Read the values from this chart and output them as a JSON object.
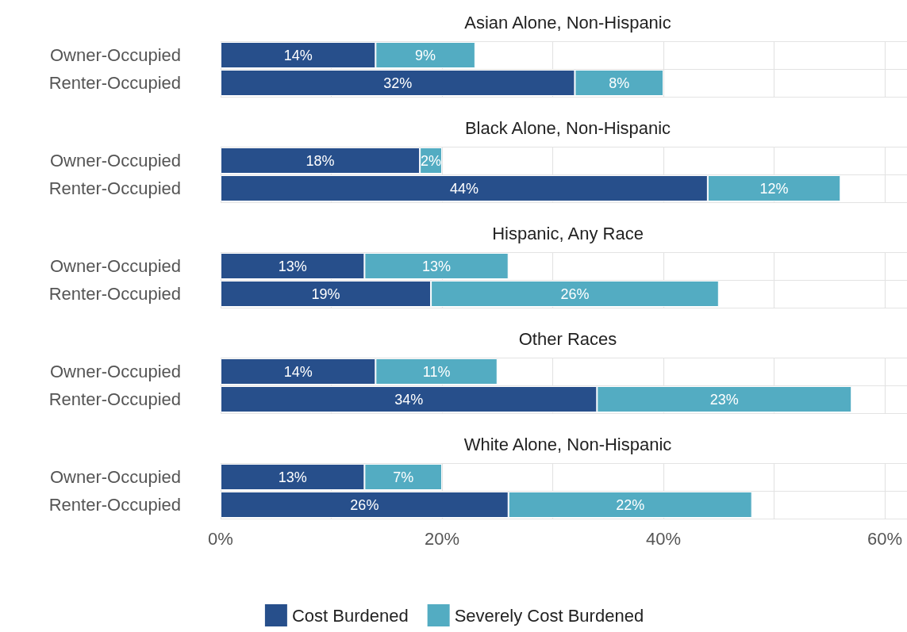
{
  "chart_data": [
    {
      "type": "bar",
      "orientation": "horizontal",
      "stacked": true,
      "title": "Asian Alone, Non-Hispanic",
      "categories": [
        "Owner-Occupied",
        "Renter-Occupied"
      ],
      "series": [
        {
          "color": "#274f8b",
          "values": [
            14,
            32
          ],
          "value_labels": [
            "14%",
            "32%"
          ]
        },
        {
          "color": "#53acc2",
          "values": [
            9,
            8
          ],
          "value_labels": [
            "9%",
            "8%"
          ]
        }
      ],
      "xlim": [
        0,
        62
      ],
      "xticks": [
        {
          "value": 0,
          "label": null
        },
        {
          "value": 10,
          "label": null
        },
        {
          "value": 20,
          "label": null
        },
        {
          "value": 30,
          "label": null
        },
        {
          "value": 40,
          "label": null
        },
        {
          "value": 50,
          "label": null
        },
        {
          "value": 60,
          "label": null
        }
      ],
      "grid": true,
      "tick_labels": "y"
    },
    {
      "type": "bar",
      "orientation": "horizontal",
      "stacked": true,
      "title": "Black Alone, Non-Hispanic",
      "categories": [
        "Owner-Occupied",
        "Renter-Occupied"
      ],
      "series": [
        {
          "color": "#274f8b",
          "values": [
            18,
            44
          ],
          "value_labels": [
            "18%",
            "44%"
          ]
        },
        {
          "color": "#53acc2",
          "values": [
            2,
            12
          ],
          "value_labels": [
            "2%",
            "12%"
          ]
        }
      ],
      "xlim": [
        0,
        62
      ],
      "xticks": [
        {
          "value": 0,
          "label": null
        },
        {
          "value": 10,
          "label": null
        },
        {
          "value": 20,
          "label": null
        },
        {
          "value": 30,
          "label": null
        },
        {
          "value": 40,
          "label": null
        },
        {
          "value": 50,
          "label": null
        },
        {
          "value": 60,
          "label": null
        }
      ],
      "grid": true,
      "tick_labels": "y"
    },
    {
      "type": "bar",
      "orientation": "horizontal",
      "stacked": true,
      "title": "Hispanic, Any Race",
      "categories": [
        "Owner-Occupied",
        "Renter-Occupied"
      ],
      "series": [
        {
          "color": "#274f8b",
          "values": [
            13,
            19
          ],
          "value_labels": [
            "13%",
            "19%"
          ]
        },
        {
          "color": "#53acc2",
          "values": [
            13,
            26
          ],
          "value_labels": [
            "13%",
            "26%"
          ]
        }
      ],
      "xlim": [
        0,
        62
      ],
      "xticks": [
        {
          "value": 0,
          "label": null
        },
        {
          "value": 10,
          "label": null
        },
        {
          "value": 20,
          "label": null
        },
        {
          "value": 30,
          "label": null
        },
        {
          "value": 40,
          "label": null
        },
        {
          "value": 50,
          "label": null
        },
        {
          "value": 60,
          "label": null
        }
      ],
      "grid": true,
      "tick_labels": "y"
    },
    {
      "type": "bar",
      "orientation": "horizontal",
      "stacked": true,
      "title": "Other Races",
      "categories": [
        "Owner-Occupied",
        "Renter-Occupied"
      ],
      "series": [
        {
          "color": "#274f8b",
          "values": [
            14,
            34
          ],
          "value_labels": [
            "14%",
            "34%"
          ]
        },
        {
          "color": "#53acc2",
          "values": [
            11,
            23
          ],
          "value_labels": [
            "11%",
            "23%"
          ]
        }
      ],
      "xlim": [
        0,
        62
      ],
      "xticks": [
        {
          "value": 0,
          "label": null
        },
        {
          "value": 10,
          "label": null
        },
        {
          "value": 20,
          "label": null
        },
        {
          "value": 30,
          "label": null
        },
        {
          "value": 40,
          "label": null
        },
        {
          "value": 50,
          "label": null
        },
        {
          "value": 60,
          "label": null
        }
      ],
      "grid": true,
      "tick_labels": "y"
    },
    {
      "type": "bar",
      "orientation": "horizontal",
      "stacked": true,
      "title": "White Alone, Non-Hispanic",
      "categories": [
        "Owner-Occupied",
        "Renter-Occupied"
      ],
      "series": [
        {
          "name": "Cost Burdened",
          "color": "#274f8b",
          "values": [
            13,
            26
          ],
          "value_labels": [
            "13%",
            "26%"
          ]
        },
        {
          "name": "Severely Cost Burdened",
          "color": "#53acc2",
          "values": [
            7,
            22
          ],
          "value_labels": [
            "7%",
            "22%"
          ]
        }
      ],
      "xlim": [
        0,
        62
      ],
      "xticks": [
        {
          "value": 0,
          "label": "0%"
        },
        {
          "value": 10,
          "label": null
        },
        {
          "value": 20,
          "label": "20%"
        },
        {
          "value": 30,
          "label": null
        },
        {
          "value": 40,
          "label": "40%"
        },
        {
          "value": 50,
          "label": null
        },
        {
          "value": 60,
          "label": "60%"
        }
      ],
      "grid": true,
      "legend": "bottom"
    }
  ]
}
